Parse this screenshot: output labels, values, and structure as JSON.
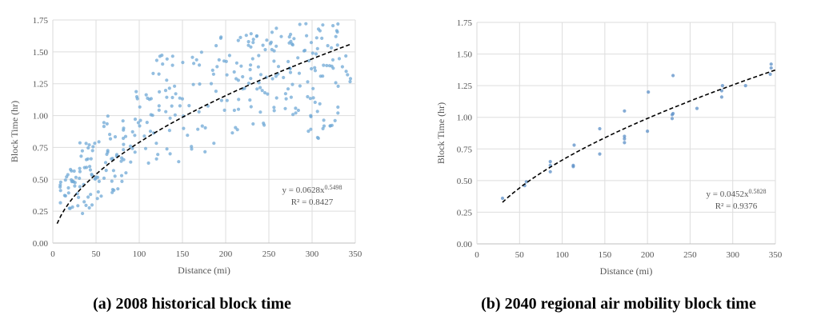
{
  "figure": {
    "captions": [
      "(a) 2008 historical block time",
      "(b) 2040 regional air mobility block time"
    ]
  },
  "chart_data": [
    {
      "type": "scatter",
      "title": "",
      "xlabel": "Distance (mi)",
      "ylabel": "Block Time (hr)",
      "xlim": [
        0,
        350
      ],
      "ylim": [
        0,
        1.75
      ],
      "xticks": [
        "0",
        "50",
        "100",
        "150",
        "200",
        "250",
        "300",
        "350"
      ],
      "yticks": [
        "0.00",
        "0.25",
        "0.50",
        "0.75",
        "1.00",
        "1.25",
        "1.50",
        "1.75"
      ],
      "grid": true,
      "point_color": "#6fa8d6",
      "trend_color": "#000000",
      "trendline": {
        "type": "power",
        "a": 0.0628,
        "b": 0.5498,
        "x_range": [
          5,
          345
        ],
        "equation_prefix": "y = 0.0628x",
        "equation_exponent": "0.5498",
        "r2_text": "R² = 0.8427"
      },
      "point_clusters": [
        {
          "x_range": [
            8,
            30
          ],
          "y_range": [
            0.22,
            0.58
          ],
          "count": 28
        },
        {
          "x_range": [
            30,
            55
          ],
          "y_range": [
            0.23,
            0.83
          ],
          "count": 38
        },
        {
          "x_range": [
            55,
            85
          ],
          "y_range": [
            0.35,
            1.0
          ],
          "count": 38
        },
        {
          "x_range": [
            85,
            115
          ],
          "y_range": [
            0.62,
            1.2
          ],
          "count": 24
        },
        {
          "x_range": [
            115,
            160
          ],
          "y_range": [
            0.63,
            1.5
          ],
          "count": 40
        },
        {
          "x_range": [
            160,
            200
          ],
          "y_range": [
            0.68,
            1.68
          ],
          "count": 28
        },
        {
          "x_range": [
            200,
            245
          ],
          "y_range": [
            0.83,
            1.68
          ],
          "count": 48
        },
        {
          "x_range": [
            245,
            285
          ],
          "y_range": [
            1.0,
            1.72
          ],
          "count": 44
        },
        {
          "x_range": [
            285,
            330
          ],
          "y_range": [
            0.82,
            1.75
          ],
          "count": 60
        },
        {
          "x_range": [
            330,
            345
          ],
          "y_range": [
            1.2,
            1.47
          ],
          "count": 8
        }
      ]
    },
    {
      "type": "scatter",
      "title": "",
      "xlabel": "Distance (mi)",
      "ylabel": "Block Time (hr)",
      "xlim": [
        0,
        350
      ],
      "ylim": [
        0,
        1.75
      ],
      "xticks": [
        "0",
        "50",
        "100",
        "150",
        "200",
        "250",
        "300",
        "350"
      ],
      "yticks": [
        "0.00",
        "0.25",
        "0.50",
        "0.75",
        "1.00",
        "1.25",
        "1.50",
        "1.75"
      ],
      "grid": true,
      "point_color": "#5b8fc7",
      "trend_color": "#000000",
      "trendline": {
        "type": "power",
        "a": 0.0452,
        "b": 0.5828,
        "x_range": [
          30,
          350
        ],
        "equation_prefix": "y = 0.0452x",
        "equation_exponent": "0.5828",
        "r2_text": "R² = 0.9376"
      },
      "points": [
        [
          30,
          0.36
        ],
        [
          56,
          0.46
        ],
        [
          58,
          0.49
        ],
        [
          86,
          0.57
        ],
        [
          86,
          0.62
        ],
        [
          86,
          0.65
        ],
        [
          113,
          0.61
        ],
        [
          113,
          0.62
        ],
        [
          114,
          0.78
        ],
        [
          144,
          0.71
        ],
        [
          144,
          0.91
        ],
        [
          173,
          0.8
        ],
        [
          173,
          0.83
        ],
        [
          173,
          0.85
        ],
        [
          173,
          1.05
        ],
        [
          200,
          0.89
        ],
        [
          201,
          1.2
        ],
        [
          229,
          0.99
        ],
        [
          229,
          1.02
        ],
        [
          230,
          1.03
        ],
        [
          230,
          1.33
        ],
        [
          258,
          1.07
        ],
        [
          287,
          1.16
        ],
        [
          287,
          1.21
        ],
        [
          288,
          1.25
        ],
        [
          315,
          1.25
        ],
        [
          344,
          1.34
        ],
        [
          345,
          1.39
        ],
        [
          345,
          1.42
        ]
      ]
    }
  ]
}
